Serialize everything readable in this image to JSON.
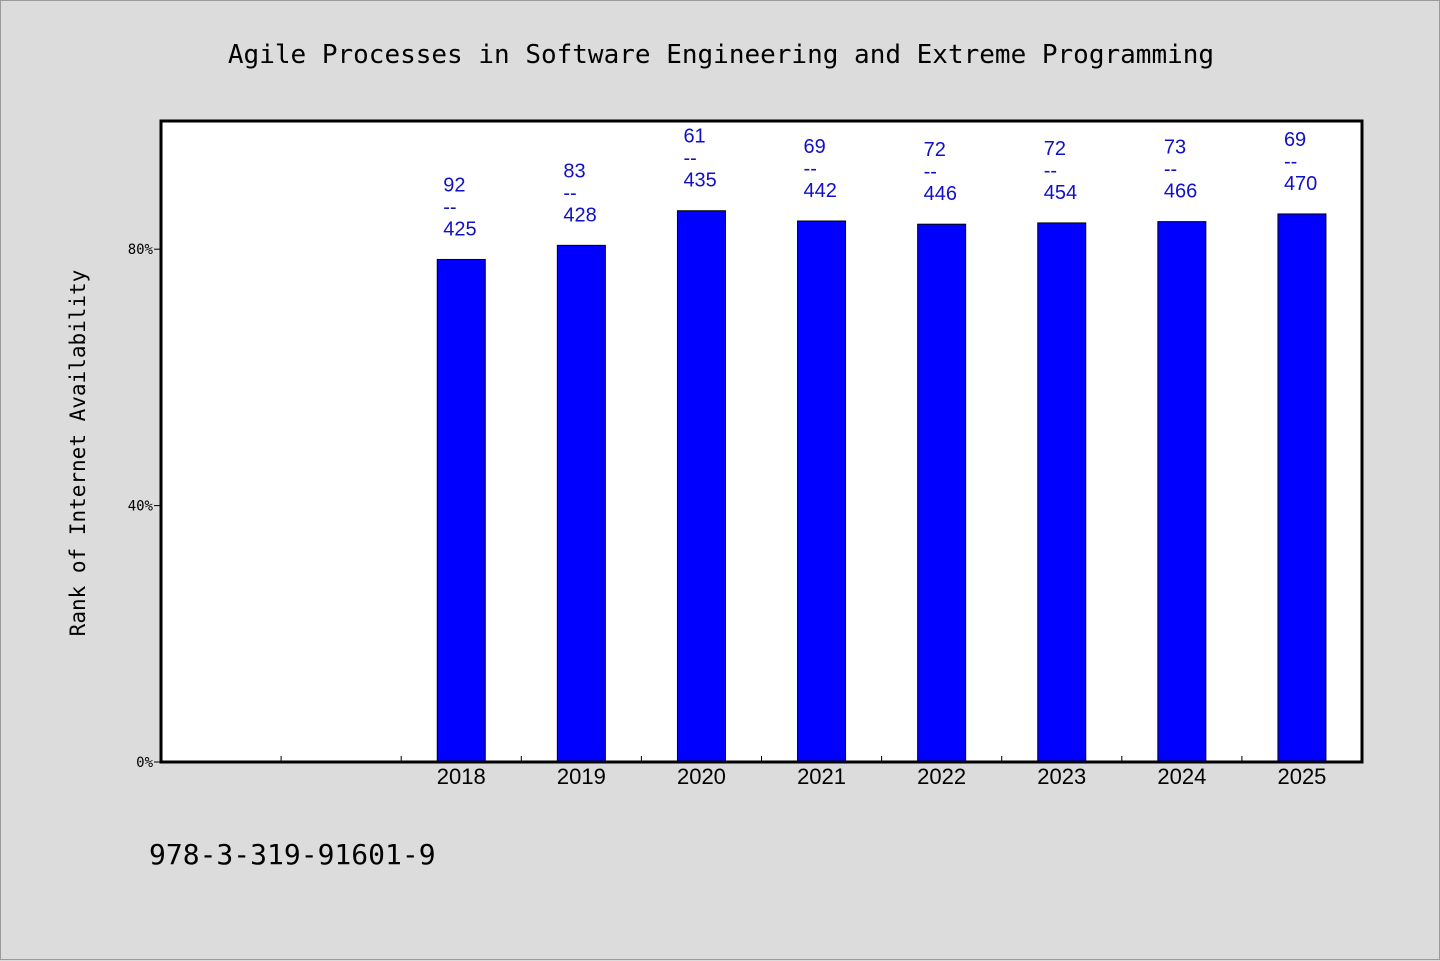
{
  "chart_data": {
    "type": "bar",
    "title": "Agile Processes in Software Engineering and Extreme Programming",
    "xlabel": "",
    "ylabel": "Rank of Internet Availability",
    "categories": [
      "",
      "",
      "2018",
      "2019",
      "2020",
      "2021",
      "2022",
      "2023",
      "2024",
      "2025"
    ],
    "values": [
      null,
      null,
      78.4,
      80.6,
      86.0,
      84.4,
      83.9,
      84.1,
      84.3,
      85.5
    ],
    "data_labels": [
      null,
      null,
      {
        "top": "92",
        "sep": "--",
        "bottom": "425"
      },
      {
        "top": "83",
        "sep": "--",
        "bottom": "428"
      },
      {
        "top": "61",
        "sep": "--",
        "bottom": "435"
      },
      {
        "top": "69",
        "sep": "--",
        "bottom": "442"
      },
      {
        "top": "72",
        "sep": "--",
        "bottom": "446"
      },
      {
        "top": "72",
        "sep": "--",
        "bottom": "454"
      },
      {
        "top": "73",
        "sep": "--",
        "bottom": "466"
      },
      {
        "top": "69",
        "sep": "--",
        "bottom": "470"
      }
    ],
    "yticks": [
      0,
      40,
      80
    ],
    "ytick_labels": [
      "0%",
      "40%",
      "80%"
    ],
    "ylim": [
      0,
      100
    ],
    "grid": false,
    "bar_color": "#0000ff",
    "label_color": "#1010c8",
    "background": "#dcdcdc",
    "plot_background": "#ffffff"
  },
  "footer": {
    "isbn": "978-3-319-91601-9"
  }
}
